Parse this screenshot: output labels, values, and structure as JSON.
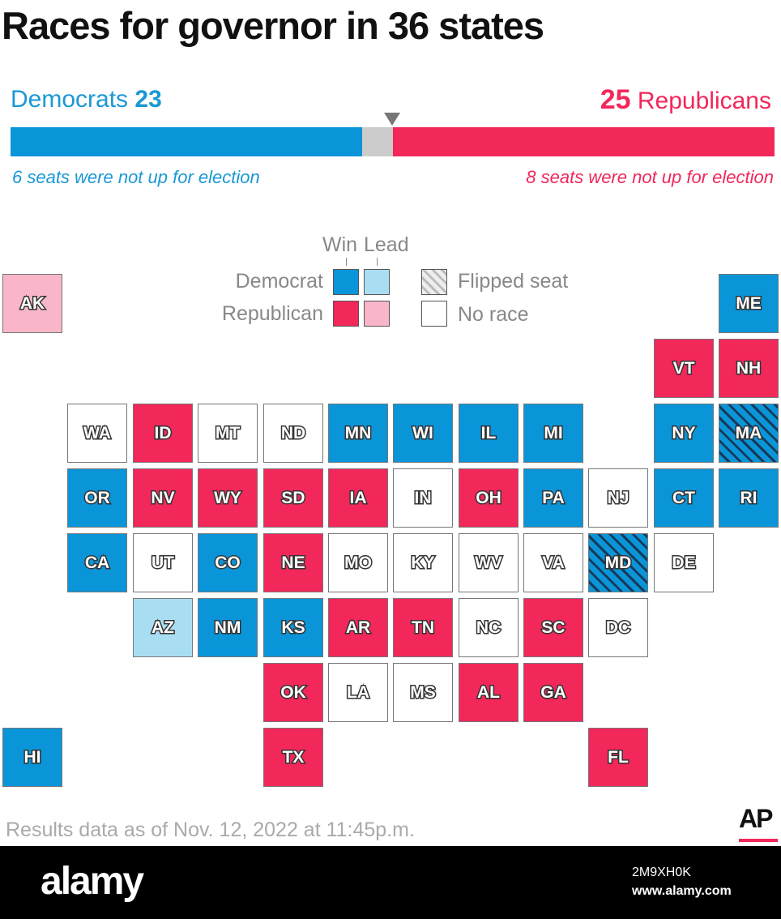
{
  "header": {
    "title": "Races for governor in 36 states"
  },
  "scoreboard": {
    "dem_label": "Democrats",
    "dem_count": 23,
    "rep_count": 25,
    "rep_label": "Republicans",
    "dem_note": "6 seats were not up for election",
    "rep_note": "8 seats were not up for election"
  },
  "legend": {
    "win": "Win",
    "lead": "Lead",
    "democrat": "Democrat",
    "republican": "Republican",
    "flipped": "Flipped seat",
    "no_race": "No race"
  },
  "states": [
    {
      "label": "AK",
      "status": "rep-lead"
    },
    {
      "label": "ME",
      "status": "dem-win"
    },
    {
      "label": "VT",
      "status": "rep-win"
    },
    {
      "label": "NH",
      "status": "rep-win"
    },
    {
      "label": "WA",
      "status": "none"
    },
    {
      "label": "ID",
      "status": "rep-win"
    },
    {
      "label": "MT",
      "status": "none"
    },
    {
      "label": "ND",
      "status": "none"
    },
    {
      "label": "MN",
      "status": "dem-win"
    },
    {
      "label": "WI",
      "status": "dem-win"
    },
    {
      "label": "IL",
      "status": "dem-win"
    },
    {
      "label": "MI",
      "status": "dem-win"
    },
    {
      "label": "NY",
      "status": "dem-win"
    },
    {
      "label": "MA",
      "status": "dem-win-flipped"
    },
    {
      "label": "OR",
      "status": "dem-win"
    },
    {
      "label": "NV",
      "status": "rep-win"
    },
    {
      "label": "WY",
      "status": "rep-win"
    },
    {
      "label": "SD",
      "status": "rep-win"
    },
    {
      "label": "IA",
      "status": "rep-win"
    },
    {
      "label": "IN",
      "status": "none"
    },
    {
      "label": "OH",
      "status": "rep-win"
    },
    {
      "label": "PA",
      "status": "dem-win"
    },
    {
      "label": "NJ",
      "status": "none"
    },
    {
      "label": "CT",
      "status": "dem-win"
    },
    {
      "label": "RI",
      "status": "dem-win"
    },
    {
      "label": "CA",
      "status": "dem-win"
    },
    {
      "label": "UT",
      "status": "none"
    },
    {
      "label": "CO",
      "status": "dem-win"
    },
    {
      "label": "NE",
      "status": "rep-win"
    },
    {
      "label": "MO",
      "status": "none"
    },
    {
      "label": "KY",
      "status": "none"
    },
    {
      "label": "WV",
      "status": "none"
    },
    {
      "label": "VA",
      "status": "none"
    },
    {
      "label": "MD",
      "status": "dem-win-flipped"
    },
    {
      "label": "DE",
      "status": "none"
    },
    {
      "label": "AZ",
      "status": "dem-lead"
    },
    {
      "label": "NM",
      "status": "dem-win"
    },
    {
      "label": "KS",
      "status": "dem-win"
    },
    {
      "label": "AR",
      "status": "rep-win"
    },
    {
      "label": "TN",
      "status": "rep-win"
    },
    {
      "label": "NC",
      "status": "none"
    },
    {
      "label": "SC",
      "status": "rep-win"
    },
    {
      "label": "DC",
      "status": "none"
    },
    {
      "label": "OK",
      "status": "rep-win"
    },
    {
      "label": "LA",
      "status": "none"
    },
    {
      "label": "MS",
      "status": "none"
    },
    {
      "label": "AL",
      "status": "rep-win"
    },
    {
      "label": "GA",
      "status": "rep-win"
    },
    {
      "label": "HI",
      "status": "dem-win"
    },
    {
      "label": "TX",
      "status": "rep-win"
    },
    {
      "label": "FL",
      "status": "rep-win"
    }
  ],
  "footer": {
    "note": "Results data as of Nov. 12, 2022 at 11:45p.m.",
    "logo": "AP"
  },
  "watermark": {
    "brand": "alamy",
    "id": "2M9XH0K",
    "url": "www.alamy.com"
  }
}
